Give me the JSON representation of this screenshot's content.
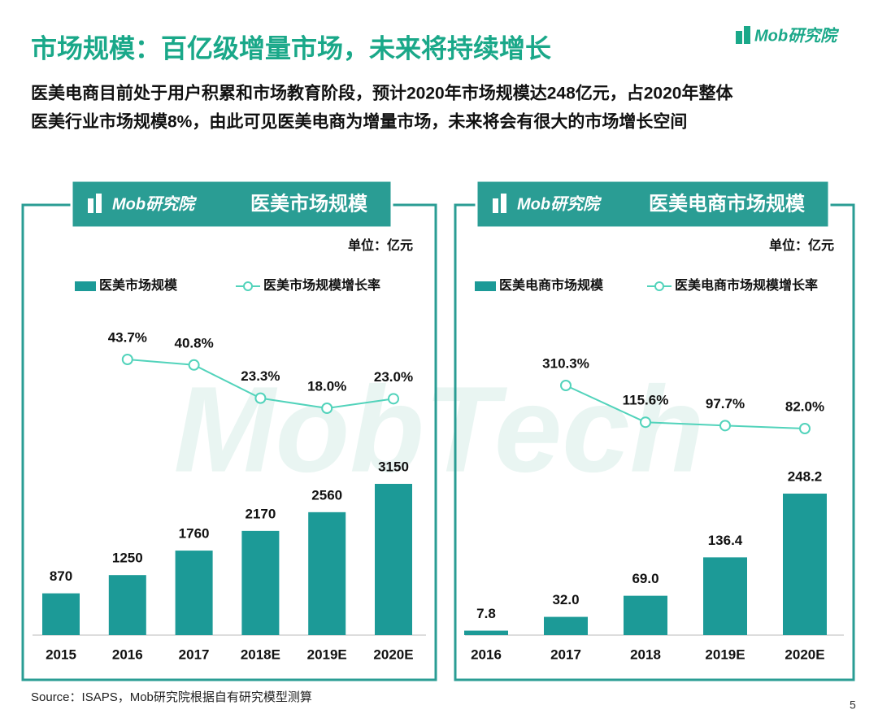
{
  "title": "市场规模：百亿级增量市场，未来将持续增长",
  "subtitle_lines": [
    "医美电商目前处于用户积累和市场教育阶段，预计2020年市场规模达248亿元，占2020年整体",
    "医美行业市场规模8%，由此可见医美电商为增量市场，未来将会有很大的市场增长空间"
  ],
  "logo": "Mob研究院",
  "watermark": "MobTech",
  "source": "Source：ISAPS，Mob研究院根据自有研究模型测算",
  "page_number": "5",
  "chart_data": [
    {
      "type": "combo",
      "panel_logo": "Mob研究院",
      "title": "医美市场规模",
      "unit": "单位：亿元",
      "categories": [
        "2015",
        "2016",
        "2017",
        "2018E",
        "2019E",
        "2020E"
      ],
      "series": [
        {
          "name": "医美市场规模",
          "kind": "bar",
          "color": "#1c9a97",
          "values": [
            870,
            1250,
            1760,
            2170,
            2560,
            3150
          ]
        },
        {
          "name": "医美市场规模增长率",
          "kind": "line",
          "color": "#52d3bb",
          "values": [
            null,
            43.7,
            40.8,
            23.3,
            18.0,
            23.0
          ],
          "value_labels": [
            null,
            "43.7%",
            "40.8%",
            "23.3%",
            "18.0%",
            "23.0%"
          ]
        }
      ]
    },
    {
      "type": "combo",
      "panel_logo": "Mob研究院",
      "title": "医美电商市场规模",
      "unit": "单位：亿元",
      "categories": [
        "2016",
        "2017",
        "2018",
        "2019E",
        "2020E"
      ],
      "series": [
        {
          "name": "医美电商市场规模",
          "kind": "bar",
          "color": "#1c9a97",
          "values": [
            7.8,
            32.0,
            69.0,
            136.4,
            248.2
          ],
          "value_labels": [
            "7.8",
            "32.0",
            "69.0",
            "136.4",
            "248.2"
          ]
        },
        {
          "name": "医美电商市场规模增长率",
          "kind": "line",
          "color": "#52d3bb",
          "values": [
            null,
            310.3,
            115.6,
            97.7,
            82.0
          ],
          "value_labels": [
            null,
            "310.3%",
            "115.6%",
            "97.7%",
            "82.0%"
          ]
        }
      ]
    }
  ]
}
